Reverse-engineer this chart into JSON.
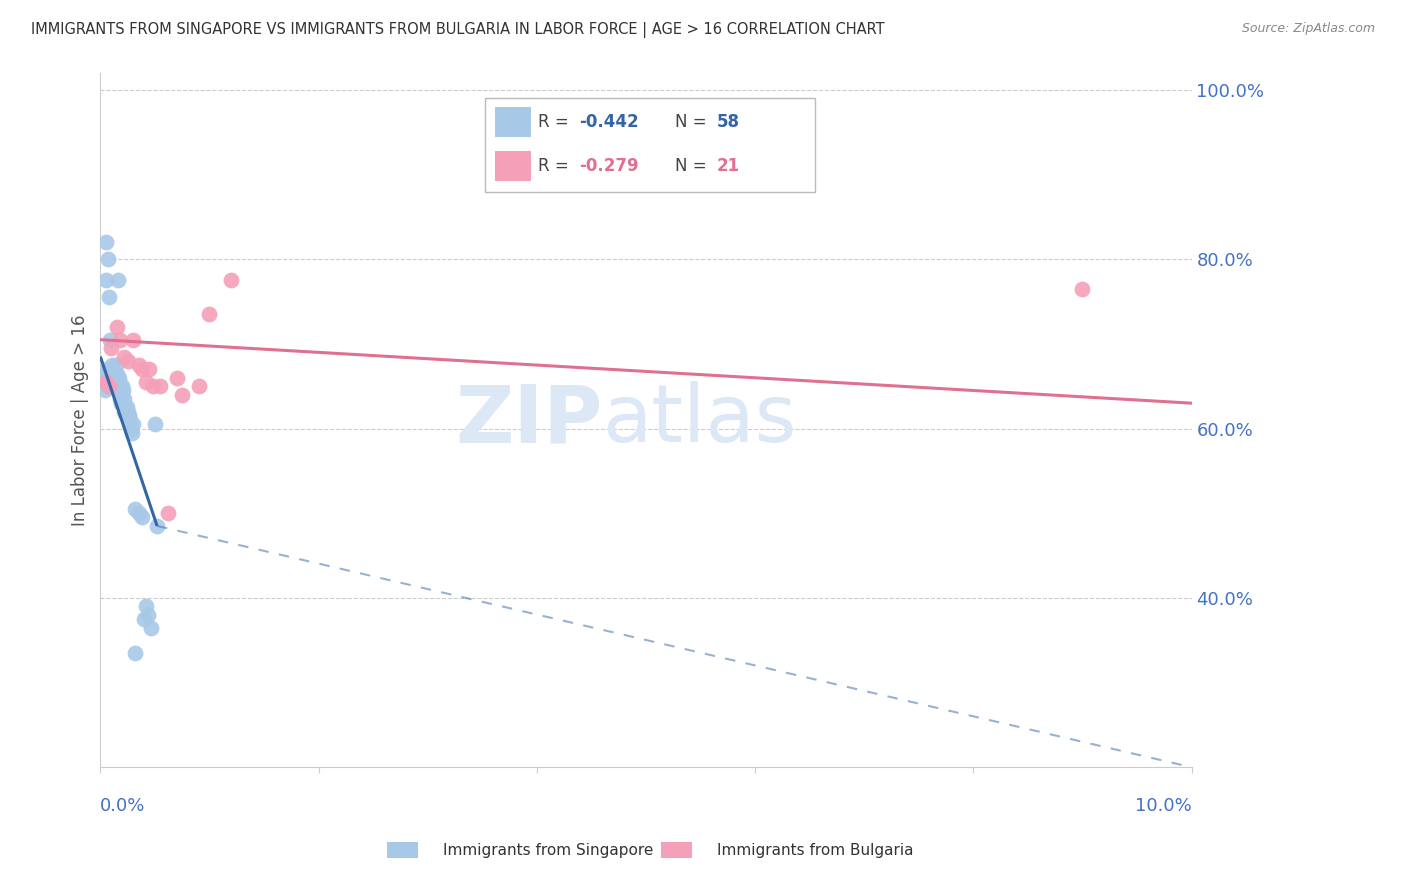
{
  "title": "IMMIGRANTS FROM SINGAPORE VS IMMIGRANTS FROM BULGARIA IN LABOR FORCE | AGE > 16 CORRELATION CHART",
  "source": "Source: ZipAtlas.com",
  "ylabel": "In Labor Force | Age > 16",
  "x_min": 0.0,
  "x_max": 10.0,
  "y_min": 20.0,
  "y_max": 102.0,
  "singapore_R": -0.442,
  "singapore_N": 58,
  "bulgaria_R": -0.279,
  "bulgaria_N": 21,
  "singapore_color": "#a8c8e8",
  "singapore_line_color": "#3465a4",
  "bulgaria_color": "#f4a0b8",
  "bulgaria_line_color": "#e07090",
  "background_color": "#ffffff",
  "grid_color": "#cccccc",
  "title_color": "#333333",
  "axis_label_color": "#4472c4",
  "watermark_color": "#dce8f5",
  "sg_line_x0": 0.0,
  "sg_line_y0": 68.5,
  "sg_line_x1": 0.52,
  "sg_line_y1": 48.5,
  "sg_dash_x1": 10.0,
  "sg_dash_y1": 20.0,
  "bg_line_x0": 0.0,
  "bg_line_y0": 70.5,
  "bg_line_x1": 10.0,
  "bg_line_y1": 63.0,
  "singapore_x": [
    0.02,
    0.03,
    0.04,
    0.05,
    0.05,
    0.06,
    0.06,
    0.07,
    0.07,
    0.08,
    0.08,
    0.09,
    0.09,
    0.1,
    0.1,
    0.11,
    0.11,
    0.12,
    0.12,
    0.13,
    0.13,
    0.14,
    0.14,
    0.15,
    0.15,
    0.16,
    0.16,
    0.17,
    0.17,
    0.18,
    0.18,
    0.19,
    0.2,
    0.2,
    0.21,
    0.22,
    0.23,
    0.24,
    0.25,
    0.26,
    0.27,
    0.28,
    0.29,
    0.3,
    0.32,
    0.35,
    0.38,
    0.4,
    0.42,
    0.44,
    0.46,
    0.5,
    0.52,
    0.17,
    0.19,
    0.22,
    0.26,
    0.32
  ],
  "singapore_y": [
    65.5,
    66.0,
    64.5,
    77.5,
    82.0,
    67.0,
    65.0,
    80.0,
    65.0,
    75.5,
    67.0,
    70.5,
    65.0,
    65.0,
    66.0,
    67.5,
    65.5,
    66.0,
    65.0,
    65.5,
    65.0,
    67.5,
    66.0,
    66.5,
    65.0,
    77.5,
    65.0,
    66.0,
    64.5,
    65.0,
    63.5,
    63.0,
    65.0,
    64.0,
    64.5,
    63.5,
    62.5,
    62.5,
    62.0,
    61.5,
    60.5,
    60.0,
    59.5,
    60.5,
    50.5,
    50.0,
    49.5,
    37.5,
    39.0,
    38.0,
    36.5,
    60.5,
    48.5,
    65.0,
    63.0,
    62.0,
    61.5,
    33.5
  ],
  "bulgaria_x": [
    0.05,
    0.08,
    0.1,
    0.15,
    0.18,
    0.22,
    0.25,
    0.3,
    0.35,
    0.38,
    0.42,
    0.45,
    0.48,
    0.55,
    0.62,
    0.7,
    0.75,
    0.9,
    1.0,
    1.2,
    9.0
  ],
  "bulgaria_y": [
    65.5,
    65.0,
    69.5,
    72.0,
    70.5,
    68.5,
    68.0,
    70.5,
    67.5,
    67.0,
    65.5,
    67.0,
    65.0,
    65.0,
    50.0,
    66.0,
    64.0,
    65.0,
    73.5,
    77.5,
    76.5
  ]
}
